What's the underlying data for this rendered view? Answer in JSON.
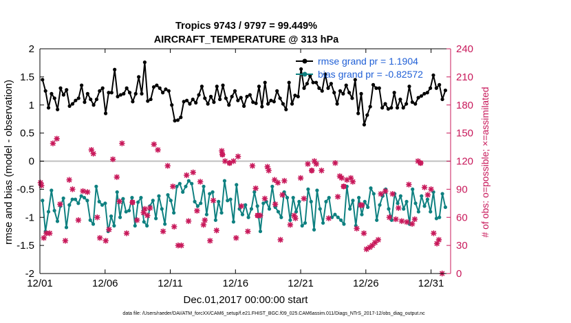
{
  "chart_data": {
    "type": "line",
    "title_line1": "Tropics 9743 / 9797 = 99.449%",
    "title_line2": "AIRCRAFT_TEMPERATURE @ 313 hPa",
    "xlabel": "Dec.01,2017 00:00:00 start",
    "ylabel": "rmse and bias (model - observation)",
    "ylabel_right": "# of obs: o=possible; ×=assimilated",
    "footer": "data file: /Users/raeder/DAI/ATM_forcXX/CAM6_setup/f.e21.FHIST_BGC.f09_025.CAM6assim.011/Diags_NTrS_2017-12/obs_diag_output.nc",
    "xlim": [
      0,
      31.5
    ],
    "ylim": [
      -2,
      2
    ],
    "ylim_right": [
      0,
      240
    ],
    "x_ticks": [
      0,
      5,
      10,
      15,
      20,
      25,
      30
    ],
    "x_tick_labels": [
      "12/01",
      "12/06",
      "12/11",
      "12/16",
      "12/21",
      "12/26",
      "12/31"
    ],
    "y_ticks": [
      -2,
      -1.5,
      -1,
      -0.5,
      0,
      0.5,
      1,
      1.5,
      2
    ],
    "y_tick_labels": [
      "-2",
      "-1.5",
      "-1",
      "-0.5",
      "0",
      "0.5",
      "1",
      "1.5",
      "2"
    ],
    "y_right_ticks": [
      0,
      30,
      60,
      90,
      120,
      150,
      180,
      210,
      240
    ],
    "y_right_tick_labels": [
      "0",
      "30",
      "60",
      "90",
      "120",
      "150",
      "180",
      "210",
      "240"
    ],
    "colors": {
      "rmse": "#000000",
      "bias": "#0e8080",
      "obs": "#c8185a",
      "zero": "#bfbfbf"
    },
    "series": [
      {
        "name": "rmse grand pr = 1.1904",
        "key": "rmse",
        "values": [
          1.45,
          1.25,
          0.95,
          1.2,
          1.12,
          0.92,
          1.3,
          1.18,
          1.27,
          0.98,
          1.02,
          1.08,
          1.12,
          1.35,
          1.05,
          1.2,
          1.1,
          1.0,
          1.1,
          1.25,
          1.3,
          0.85,
          1.22,
          1.22,
          1.63,
          1.15,
          1.18,
          1.2,
          1.3,
          1.22,
          1.06,
          1.2,
          1.5,
          1.2,
          1.76,
          1.07,
          1.1,
          1.32,
          1.35,
          1.3,
          1.22,
          1.28,
          1.25,
          1.0,
          0.72,
          0.73,
          0.78,
          1.06,
          1.08,
          1.02,
          1.1,
          1.04,
          1.18,
          1.33,
          1.12,
          1.02,
          1.15,
          1.05,
          1.33,
          1.1,
          1.35,
          1.12,
          1.0,
          1.15,
          1.25,
          1.08,
          1.13,
          0.98,
          1.15,
          1.18,
          1.05,
          1.03,
          1.33,
          0.97,
          1.4,
          1.02,
          1.08,
          1.06,
          1.25,
          1.12,
          1.02,
          0.92,
          1.4,
          1.02,
          1.17,
          1.15,
          1.64,
          1.3,
          1.38,
          1.52,
          1.4,
          1.4,
          1.3,
          1.25,
          1.55,
          1.3,
          1.38,
          1.22,
          1.02,
          1.25,
          1.2,
          1.35,
          1.22,
          1.12,
          1.45,
          0.85,
          1.2,
          0.65,
          0.82,
          0.97,
          1.36,
          1.3,
          1.3,
          0.95,
          1.02,
          0.93,
          0.95,
          1.22,
          0.95,
          1.1,
          0.95,
          1.02,
          1.33,
          1.05,
          1.02,
          1.13,
          1.16,
          1.2,
          1.22,
          1.3,
          1.53,
          1.3,
          1.36,
          1.1,
          1.26
        ]
      },
      {
        "name": "bias grand pr = -0.82572",
        "key": "bias",
        "values": [
          -0.7,
          -1.25,
          -0.9,
          -0.52,
          -0.88,
          -1.07,
          -0.8,
          -0.66,
          -1.18,
          -0.78,
          -0.68,
          -0.68,
          -0.75,
          -0.62,
          -0.65,
          -0.7,
          -1.05,
          -1.12,
          -0.45,
          -0.72,
          -0.78,
          -0.75,
          -1.25,
          -0.98,
          -1.15,
          -0.55,
          -1.0,
          -0.67,
          -0.9,
          -0.88,
          -0.65,
          -1.15,
          -0.73,
          -0.65,
          -1.08,
          -1.15,
          -0.8,
          -0.7,
          -1.02,
          -0.62,
          -0.85,
          -1.12,
          -0.6,
          -0.7,
          -0.92,
          -0.45,
          -0.4,
          -0.55,
          -0.45,
          -0.35,
          -0.4,
          -0.72,
          -0.8,
          -0.75,
          -0.45,
          -0.95,
          -0.58,
          -0.55,
          -1.05,
          -0.72,
          -0.92,
          -0.35,
          -0.7,
          -0.68,
          -1.08,
          -0.42,
          -0.85,
          -0.95,
          -0.78,
          -1.0,
          -0.85,
          -0.55,
          -0.8,
          -1.25,
          -0.75,
          -0.72,
          -0.85,
          -0.45,
          -0.82,
          -0.9,
          -1.0,
          -0.55,
          -0.65,
          -1.05,
          -0.65,
          -0.9,
          -0.72,
          -1.15,
          -1.1,
          -0.5,
          -0.72,
          -1.22,
          -0.52,
          -0.85,
          -1.1,
          -0.72,
          -0.65,
          -1.0,
          -0.95,
          -1.0,
          -1.05,
          -1.12,
          -0.45,
          -0.85,
          -0.7,
          -1.15,
          -0.65,
          -0.95,
          -0.72,
          -0.82,
          -0.48,
          -0.58,
          -1.05,
          -0.78,
          -0.62,
          -0.5,
          -0.85,
          -1.05,
          -0.58,
          -0.75,
          -0.62,
          -0.85,
          -0.72,
          -1.12,
          -0.5,
          -0.75,
          -0.9,
          -0.62,
          -0.8,
          -0.68,
          -0.9,
          -0.55,
          -1.02,
          -1.0,
          -0.58,
          -0.82
        ]
      }
    ],
    "obs_points": [
      [
        0.05,
        97
      ],
      [
        0.12,
        94
      ],
      [
        0.3,
        38
      ],
      [
        0.5,
        43
      ],
      [
        0.75,
        43
      ],
      [
        1.0,
        139
      ],
      [
        1.3,
        144
      ],
      [
        1.55,
        74
      ],
      [
        1.95,
        35
      ],
      [
        2.25,
        100
      ],
      [
        2.5,
        90
      ],
      [
        2.95,
        57
      ],
      [
        3.3,
        88
      ],
      [
        3.65,
        87
      ],
      [
        3.95,
        132
      ],
      [
        4.1,
        128
      ],
      [
        4.4,
        60
      ],
      [
        4.6,
        38
      ],
      [
        5.05,
        35
      ],
      [
        5.3,
        47
      ],
      [
        5.6,
        122
      ],
      [
        5.9,
        103
      ],
      [
        6.1,
        77
      ],
      [
        6.3,
        139
      ],
      [
        6.65,
        43
      ],
      [
        7.1,
        76
      ],
      [
        7.45,
        57
      ],
      [
        7.95,
        65
      ],
      [
        8.05,
        69
      ],
      [
        8.25,
        62
      ],
      [
        8.45,
        70
      ],
      [
        8.75,
        138
      ],
      [
        9.05,
        132
      ],
      [
        9.45,
        45
      ],
      [
        9.8,
        115
      ],
      [
        10.2,
        93
      ],
      [
        10.3,
        50
      ],
      [
        10.6,
        30
      ],
      [
        10.85,
        30
      ],
      [
        11.25,
        105
      ],
      [
        11.4,
        56
      ],
      [
        11.75,
        108
      ],
      [
        12.05,
        67
      ],
      [
        12.3,
        98
      ],
      [
        12.55,
        52
      ],
      [
        12.65,
        57
      ],
      [
        13.05,
        35
      ],
      [
        13.3,
        78
      ],
      [
        13.55,
        46
      ],
      [
        13.95,
        131
      ],
      [
        14.0,
        127
      ],
      [
        14.2,
        120
      ],
      [
        14.55,
        118
      ],
      [
        14.85,
        120
      ],
      [
        15.05,
        38
      ],
      [
        15.2,
        125
      ],
      [
        15.45,
        72
      ],
      [
        15.95,
        45
      ],
      [
        16.3,
        115
      ],
      [
        16.55,
        91
      ],
      [
        16.7,
        62
      ],
      [
        16.9,
        62
      ],
      [
        17.25,
        80
      ],
      [
        17.45,
        114
      ],
      [
        17.55,
        110
      ],
      [
        18.0,
        100
      ],
      [
        18.05,
        74
      ],
      [
        18.25,
        97
      ],
      [
        18.45,
        36
      ],
      [
        18.6,
        84
      ],
      [
        18.75,
        99
      ],
      [
        19.2,
        52
      ],
      [
        19.5,
        62
      ],
      [
        19.6,
        59
      ],
      [
        20.0,
        102
      ],
      [
        20.25,
        80
      ],
      [
        20.55,
        117
      ],
      [
        20.85,
        110
      ],
      [
        21.05,
        120
      ],
      [
        21.2,
        117
      ],
      [
        21.6,
        110
      ],
      [
        22.15,
        59
      ],
      [
        22.65,
        118
      ],
      [
        22.85,
        82
      ],
      [
        23.0,
        104
      ],
      [
        23.15,
        102
      ],
      [
        23.3,
        93
      ],
      [
        23.55,
        100
      ],
      [
        23.85,
        102
      ],
      [
        24.0,
        98
      ],
      [
        24.3,
        48
      ],
      [
        24.6,
        73
      ],
      [
        24.7,
        73
      ],
      [
        24.85,
        43
      ],
      [
        25.05,
        26
      ],
      [
        25.3,
        28
      ],
      [
        25.5,
        30
      ],
      [
        25.7,
        33
      ],
      [
        25.95,
        36
      ],
      [
        26.15,
        85
      ],
      [
        26.5,
        88
      ],
      [
        26.8,
        60
      ],
      [
        27.05,
        85
      ],
      [
        27.3,
        58
      ],
      [
        27.5,
        70
      ],
      [
        27.75,
        56
      ],
      [
        28.15,
        55
      ],
      [
        28.3,
        95
      ],
      [
        28.55,
        53
      ],
      [
        28.75,
        58
      ],
      [
        29.0,
        120
      ],
      [
        29.2,
        118
      ],
      [
        29.5,
        92
      ],
      [
        29.75,
        84
      ],
      [
        30.0,
        90
      ],
      [
        30.2,
        43
      ],
      [
        30.45,
        32
      ],
      [
        30.6,
        36
      ],
      [
        30.85,
        0
      ]
    ],
    "obs_circles": [
      [
        7.1,
        76
      ],
      [
        14.0,
        127
      ],
      [
        14.55,
        118
      ],
      [
        16.7,
        62
      ],
      [
        20.85,
        110
      ],
      [
        23.3,
        93
      ],
      [
        29.2,
        118
      ]
    ]
  }
}
